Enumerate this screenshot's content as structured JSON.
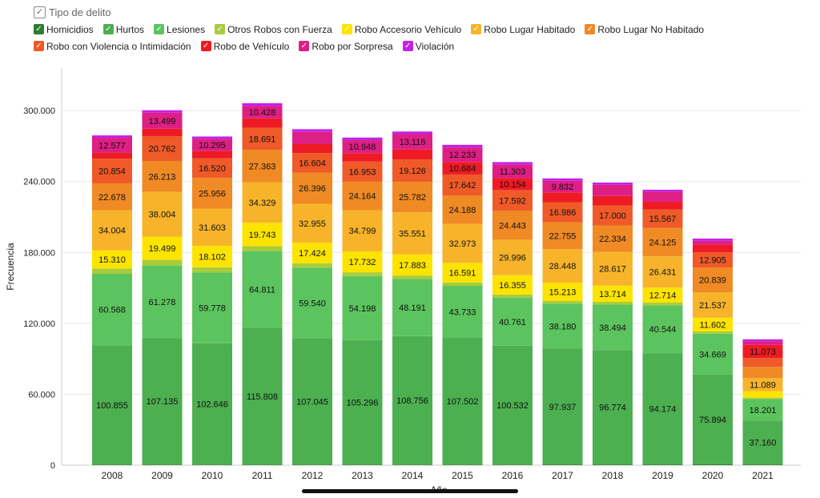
{
  "legend": {
    "title": "Tipo de delito"
  },
  "chart_data": {
    "type": "bar",
    "stacked": true,
    "xlabel": "Año",
    "ylabel": "Frecuencia",
    "ylim": [
      0,
      336000
    ],
    "yticks": [
      0,
      60000,
      120000,
      180000,
      240000,
      300000
    ],
    "ytick_labels": [
      "0",
      "60.000",
      "120.000",
      "180.000",
      "240.000",
      "300.000"
    ],
    "categories": [
      "2008",
      "2009",
      "2010",
      "2011",
      "2012",
      "2013",
      "2014",
      "2015",
      "2016",
      "2017",
      "2018",
      "2019",
      "2020",
      "2021"
    ],
    "grid": "horizontal",
    "legend_position": "top",
    "series": [
      {
        "name": "Homicidios",
        "color": "#2e7d32",
        "values": [
          500,
          500,
          500,
          500,
          500,
          500,
          500,
          500,
          500,
          600,
          600,
          600,
          700,
          600
        ],
        "labels": []
      },
      {
        "name": "Hurtos",
        "color": "#4caf50",
        "values": [
          100855,
          107135,
          102646,
          115808,
          107045,
          105296,
          108756,
          107502,
          100532,
          97937,
          96774,
          94174,
          75894,
          37160
        ],
        "labels": [
          "100.855",
          "107.135",
          "102.646",
          "115.808",
          "107.045",
          "105.296",
          "108.756",
          "107.502",
          "100.532",
          "97.937",
          "96.774",
          "94.174",
          "75.894",
          "37.160"
        ]
      },
      {
        "name": "Lesiones",
        "color": "#5cc45e",
        "values": [
          60568,
          61278,
          59778,
          64811,
          59540,
          54198,
          48191,
          43733,
          40761,
          38180,
          38494,
          40544,
          34669,
          18201
        ],
        "labels": [
          "60.568",
          "61.278",
          "59.778",
          "64.811",
          "59.540",
          "54.198",
          "48.191",
          "43.733",
          "40.761",
          "38.180",
          "38.494",
          "40.544",
          "34.669",
          "18.201"
        ]
      },
      {
        "name": "Otros Robos con Fuerza",
        "color": "#a8cc3c",
        "values": [
          4500,
          4800,
          4500,
          4200,
          3700,
          3200,
          3000,
          2800,
          2600,
          2400,
          2300,
          2200,
          1900,
          1100
        ],
        "labels": []
      },
      {
        "name": "Robo Accesorio Vehículo",
        "color": "#fde400",
        "values": [
          15310,
          19499,
          18102,
          19743,
          17424,
          17732,
          17883,
          16591,
          16355,
          15213,
          13714,
          12714,
          11602,
          5500
        ],
        "labels": [
          "15.310",
          "19.499",
          "18.102",
          "19.743",
          "17.424",
          "17.732",
          "17.883",
          "16.591",
          "16.355",
          "15.213",
          "13.714",
          "12.714",
          "11.602",
          ""
        ]
      },
      {
        "name": "Robo Lugar Habitado",
        "color": "#f7b42a",
        "values": [
          34004,
          38004,
          31603,
          34329,
          32955,
          34799,
          35551,
          32973,
          29996,
          28448,
          28617,
          26431,
          21537,
          11089
        ],
        "labels": [
          "34.004",
          "38.004",
          "31.603",
          "34.329",
          "32.955",
          "34.799",
          "35.551",
          "32.973",
          "29.996",
          "28.448",
          "28.617",
          "26.431",
          "21.537",
          "11.089"
        ]
      },
      {
        "name": "Robo Lugar No Habitado",
        "color": "#f08a24",
        "values": [
          22678,
          26213,
          25956,
          27363,
          26396,
          24164,
          25782,
          24188,
          24443,
          22755,
          22334,
          24125,
          20839,
          9500
        ],
        "labels": [
          "22.678",
          "26.213",
          "25.956",
          "27.363",
          "26.396",
          "24.164",
          "25.782",
          "24.188",
          "24.443",
          "22.755",
          "22.334",
          "24.125",
          "20.839",
          ""
        ]
      },
      {
        "name": "Robo con Violencia o Intimidación",
        "color": "#ef5a28",
        "values": [
          20854,
          20762,
          16520,
          18691,
          16604,
          16953,
          19126,
          17642,
          17592,
          16986,
          17000,
          15567,
          12905,
          7500
        ],
        "labels": [
          "20.854",
          "20.762",
          "16.520",
          "18.691",
          "16.604",
          "16.953",
          "19.126",
          "17.642",
          "17.592",
          "16.986",
          "17.000",
          "15.567",
          "12.905",
          ""
        ]
      },
      {
        "name": "Robo de Vehículo",
        "color": "#ee1b24",
        "values": [
          5200,
          6500,
          6200,
          8000,
          7500,
          7200,
          8200,
          10684,
          10154,
          8300,
          7900,
          6500,
          6300,
          11073
        ],
        "labels": [
          "",
          "",
          "",
          "",
          "",
          "",
          "",
          "10.684",
          "10.154",
          "",
          "",
          "",
          "",
          "11.073"
        ]
      },
      {
        "name": "Robo por Sorpresa",
        "color": "#de1f84",
        "values": [
          12577,
          13499,
          10295,
          10428,
          10300,
          10948,
          13116,
          12233,
          11303,
          9832,
          9500,
          8400,
          3500,
          3200
        ],
        "labels": [
          "12.577",
          "13.499",
          "10.295",
          "10.428",
          "",
          "10.948",
          "13.116",
          "12.233",
          "11.303",
          "9.832",
          "",
          "",
          "",
          ""
        ]
      },
      {
        "name": "Violación",
        "color": "#c522e6",
        "values": [
          2000,
          2100,
          2000,
          2400,
          2300,
          2200,
          2200,
          2200,
          2200,
          2000,
          1900,
          1800,
          1900,
          1600
        ],
        "labels": []
      }
    ]
  }
}
